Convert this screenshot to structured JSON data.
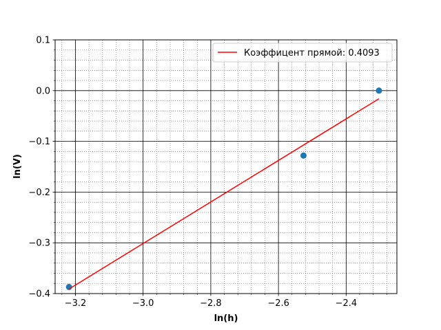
{
  "chart_data": {
    "type": "scatter",
    "title": "",
    "xlabel": "ln(h)",
    "ylabel": "ln(V)",
    "xlim": [
      -3.26,
      -2.25
    ],
    "ylim": [
      -0.4,
      0.1
    ],
    "x_major_ticks": [
      -3.2,
      -3.0,
      -2.8,
      -2.6,
      -2.4
    ],
    "x_tick_labels": [
      "−3.2",
      "−3.0",
      "−2.8",
      "−2.6",
      "−2.4"
    ],
    "y_major_ticks": [
      -0.4,
      -0.3,
      -0.2,
      -0.1,
      0.0,
      0.1
    ],
    "y_tick_labels": [
      "−0.4",
      "−0.3",
      "−0.2",
      "−0.1",
      "0.0",
      "0.1"
    ],
    "grid": "major solid, minor dotted",
    "legend_position": "top-right",
    "series": [
      {
        "kind": "points",
        "color": "#1f77b4",
        "x": [
          -3.219,
          -2.526,
          -2.303
        ],
        "y": [
          -0.387,
          -0.128,
          0.0
        ]
      },
      {
        "kind": "line",
        "name": "Коэффицент прямой: 0.4093",
        "color": "#ff0000",
        "x": [
          -3.219,
          -2.303
        ],
        "y": [
          -0.391,
          -0.016
        ]
      }
    ]
  }
}
